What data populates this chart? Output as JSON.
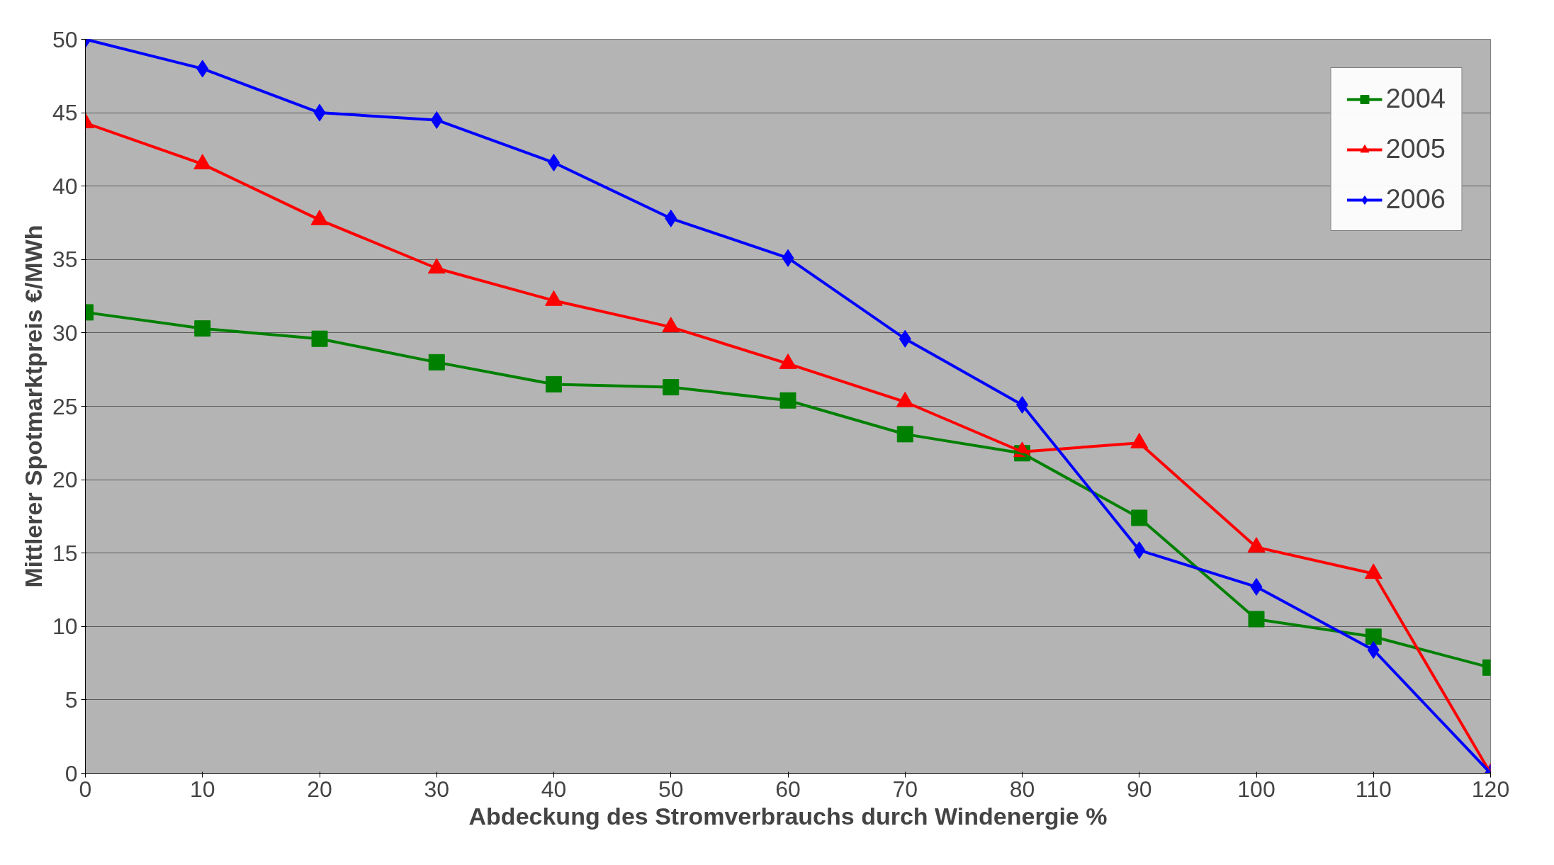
{
  "chart_data": {
    "type": "line",
    "xlabel": "Abdeckung des Stromverbrauchs durch Windenergie %",
    "ylabel": "Mittlerer Spotmarktpreis €/MWh",
    "x": [
      0,
      10,
      20,
      30,
      40,
      50,
      60,
      70,
      80,
      90,
      100,
      110,
      120
    ],
    "xlim": [
      0,
      120
    ],
    "xticks": [
      0,
      10,
      20,
      30,
      40,
      50,
      60,
      70,
      80,
      90,
      100,
      110,
      120
    ],
    "ylim": [
      0,
      50
    ],
    "yticks": [
      0,
      5,
      10,
      15,
      20,
      25,
      30,
      35,
      40,
      45,
      50
    ],
    "grid": "y",
    "legend": "top right",
    "series": [
      {
        "name": "2004",
        "color": "#008000",
        "marker": "square",
        "values": [
          31.4,
          30.3,
          29.6,
          28.0,
          26.5,
          26.3,
          25.4,
          23.1,
          21.8,
          17.4,
          10.5,
          9.3,
          7.2
        ]
      },
      {
        "name": "2005",
        "color": "#ff0000",
        "marker": "triangle",
        "values": [
          44.3,
          41.5,
          37.7,
          34.4,
          32.2,
          30.4,
          27.9,
          25.3,
          21.9,
          22.5,
          15.4,
          13.6,
          0
        ]
      },
      {
        "name": "2006",
        "color": "#0000ff",
        "marker": "diamond",
        "values": [
          50.0,
          48.0,
          45.0,
          44.5,
          41.6,
          37.8,
          35.1,
          29.6,
          25.1,
          15.2,
          12.7,
          8.4,
          0
        ]
      }
    ]
  }
}
